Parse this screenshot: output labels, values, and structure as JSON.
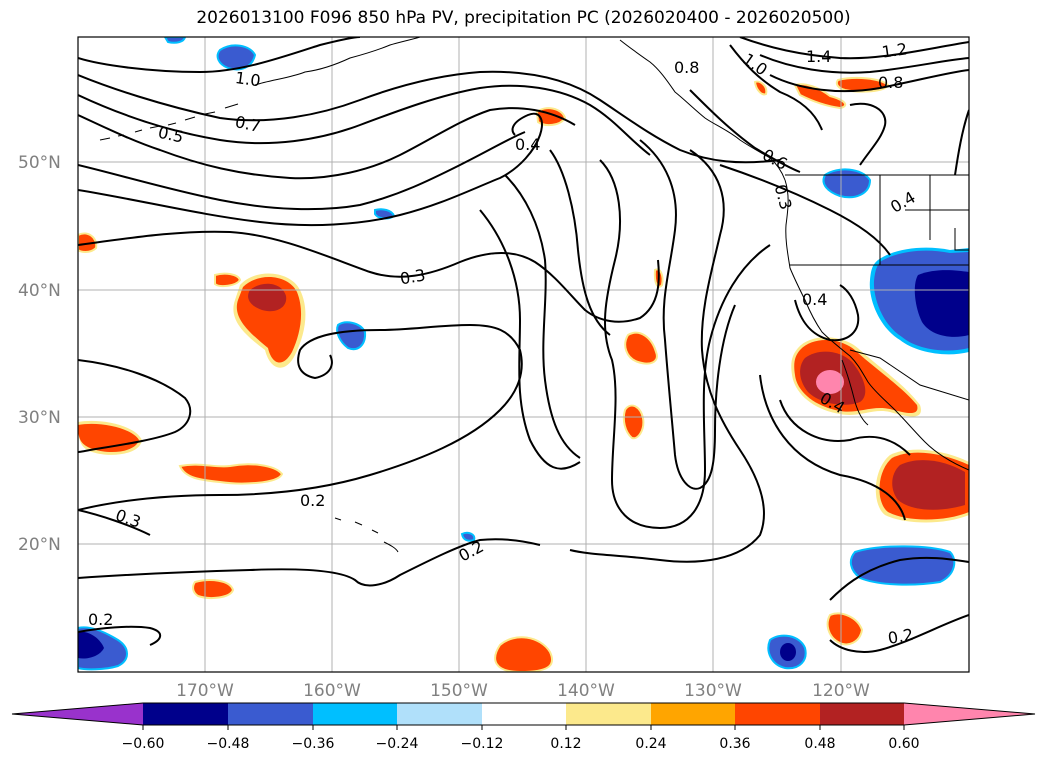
{
  "title": "2026013100 F096 850 hPa PV, precipitation PC (2026020400 - 2026020500)",
  "map": {
    "lat_labels": [
      "50°N",
      "40°N",
      "30°N",
      "20°N"
    ],
    "lon_labels": [
      "170°W",
      "160°W",
      "150°W",
      "140°W",
      "130°W",
      "120°W"
    ],
    "contour_labels": [
      "1.0",
      "0.7",
      "0.5",
      "0.4",
      "0.3",
      "0.2",
      "0.3",
      "0.2",
      "0.2",
      "0.4",
      "0.4",
      "0.4",
      "1.4",
      "1.2",
      "0.8",
      "1.0",
      "0.6",
      "0.3",
      "0.2",
      "0.8"
    ]
  },
  "colorbar": {
    "ticks": [
      "−0.60",
      "−0.48",
      "−0.36",
      "−0.24",
      "−0.12",
      "0.12",
      "0.24",
      "0.36",
      "0.48",
      "0.60"
    ],
    "colors": {
      "under": "#9932CC",
      "c1": "#00008B",
      "c2": "#3A5BD0",
      "c3": "#00BFFF",
      "c4": "#B0E0FA",
      "c5": "#FFFFFF",
      "c6": "#FCE98C",
      "c7": "#FFA500",
      "c8": "#FF4500",
      "c9": "#B22222",
      "over": "#FF85AD"
    }
  }
}
